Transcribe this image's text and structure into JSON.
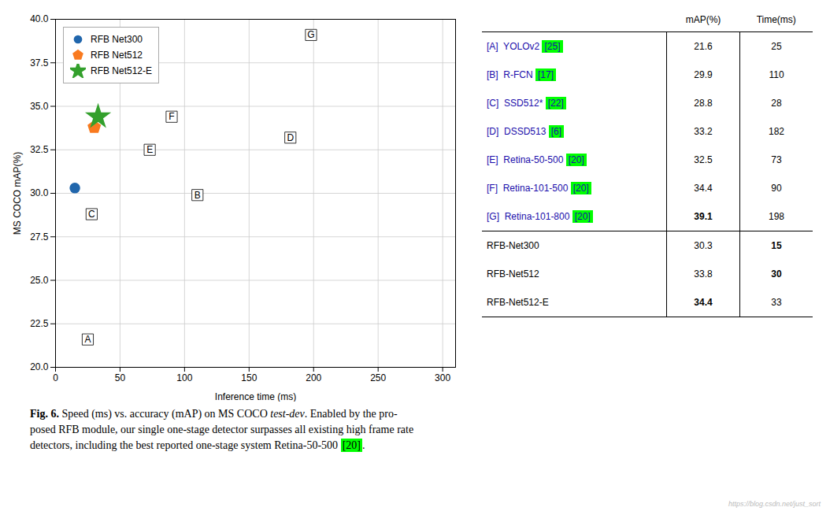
{
  "chart_data": {
    "type": "scatter",
    "xlabel": "Inference time (ms)",
    "ylabel": "MS COCO mAP(%)",
    "xlim": [
      0,
      310
    ],
    "ylim": [
      20.0,
      40.0
    ],
    "xticks": [
      0,
      50,
      100,
      150,
      200,
      250,
      300
    ],
    "yticks": [
      {
        "value": 20.0,
        "label": "20.0"
      },
      22.5,
      {
        "value": 25.0,
        "label": "25.0"
      },
      27.5,
      {
        "value": 30.0,
        "label": "30.0"
      },
      32.5,
      {
        "value": 35.0,
        "label": "35.0"
      },
      37.5,
      {
        "value": 40.0,
        "label": "40.0"
      }
    ],
    "grid": true,
    "legend": "upper left",
    "series": [
      {
        "name": "RFB Net300",
        "color": "#2166ac",
        "marker": "circle",
        "x": [
          15
        ],
        "y": [
          30.3
        ]
      },
      {
        "name": "RFB Net512",
        "color": "#f97a1f",
        "marker": "pentagon",
        "x": [
          30
        ],
        "y": [
          33.8
        ]
      },
      {
        "name": "RFB Net512-E",
        "color": "#33a02c",
        "marker": "star",
        "x": [
          33
        ],
        "y": [
          34.4
        ]
      }
    ],
    "annotations": [
      {
        "text": "A",
        "x": 25,
        "y": 21.6
      },
      {
        "text": "B",
        "x": 110,
        "y": 29.9
      },
      {
        "text": "C",
        "x": 28,
        "y": 28.8
      },
      {
        "text": "D",
        "x": 182,
        "y": 33.2
      },
      {
        "text": "E",
        "x": 73,
        "y": 32.5
      },
      {
        "text": "F",
        "x": 90,
        "y": 34.4
      },
      {
        "text": "G",
        "x": 198,
        "y": 39.1
      }
    ],
    "table": {
      "columns": [
        "mAP(%)",
        "Time(ms)"
      ],
      "rows": [
        {
          "label": "[A]  YOLOv2",
          "ref": "[25]",
          "map": "21.6",
          "time": "25",
          "color": "#1a0dab",
          "bold_map": false,
          "bold_time": false
        },
        {
          "label": "[B]  R-FCN",
          "ref": "[17]",
          "map": "29.9",
          "time": "110",
          "color": "#1a0dab",
          "bold_map": false,
          "bold_time": false
        },
        {
          "label": "[C]  SSD512*",
          "ref": "[22]",
          "map": "28.8",
          "time": "28",
          "color": "#1a0dab",
          "bold_map": false,
          "bold_time": false
        },
        {
          "label": "[D]  DSSD513",
          "ref": "[6]",
          "map": "33.2",
          "time": "182",
          "color": "#1a0dab",
          "bold_map": false,
          "bold_time": false
        },
        {
          "label": "[E]  Retina-50-500",
          "ref": "[20]",
          "map": "32.5",
          "time": "73",
          "color": "#1a0dab",
          "bold_map": false,
          "bold_time": false
        },
        {
          "label": "[F]  Retina-101-500",
          "ref": "[20]",
          "map": "34.4",
          "time": "90",
          "color": "#1a0dab",
          "bold_map": false,
          "bold_time": false
        },
        {
          "label": "[G]  Retina-101-800",
          "ref": "[20]",
          "map": "39.1",
          "time": "198",
          "color": "#1a0dab",
          "bold_map": true,
          "bold_time": false
        },
        {
          "label": "RFB-Net300",
          "map": "30.3",
          "time": "15",
          "bold_map": false,
          "bold_time": true
        },
        {
          "label": "RFB-Net512",
          "map": "33.8",
          "time": "30",
          "bold_map": false,
          "bold_time": true
        },
        {
          "label": "RFB-Net512-E",
          "map": "34.4",
          "time": "33",
          "bold_map": true,
          "bold_time": false
        }
      ]
    },
    "ref_box_color": "#00ff00",
    "caption": [
      [
        {
          "text": "Fig. 6. ",
          "style": "bold"
        },
        {
          "text": "Speed (ms) vs. accuracy (mAP) on MS COCO "
        },
        {
          "text": "test-dev",
          "style": "italic"
        },
        {
          "text": ". Enabled by the pro-"
        }
      ],
      [
        {
          "text": "posed RFB module, our single one-stage detector surpasses all existing high frame rate"
        }
      ],
      [
        {
          "text": "detectors, including the best reported one-stage system Retina-50-500 "
        },
        {
          "text": "[20]",
          "style": "boxed"
        },
        {
          "text": "."
        }
      ]
    ],
    "watermark": "https://blog.csdn.net/just_sort"
  }
}
